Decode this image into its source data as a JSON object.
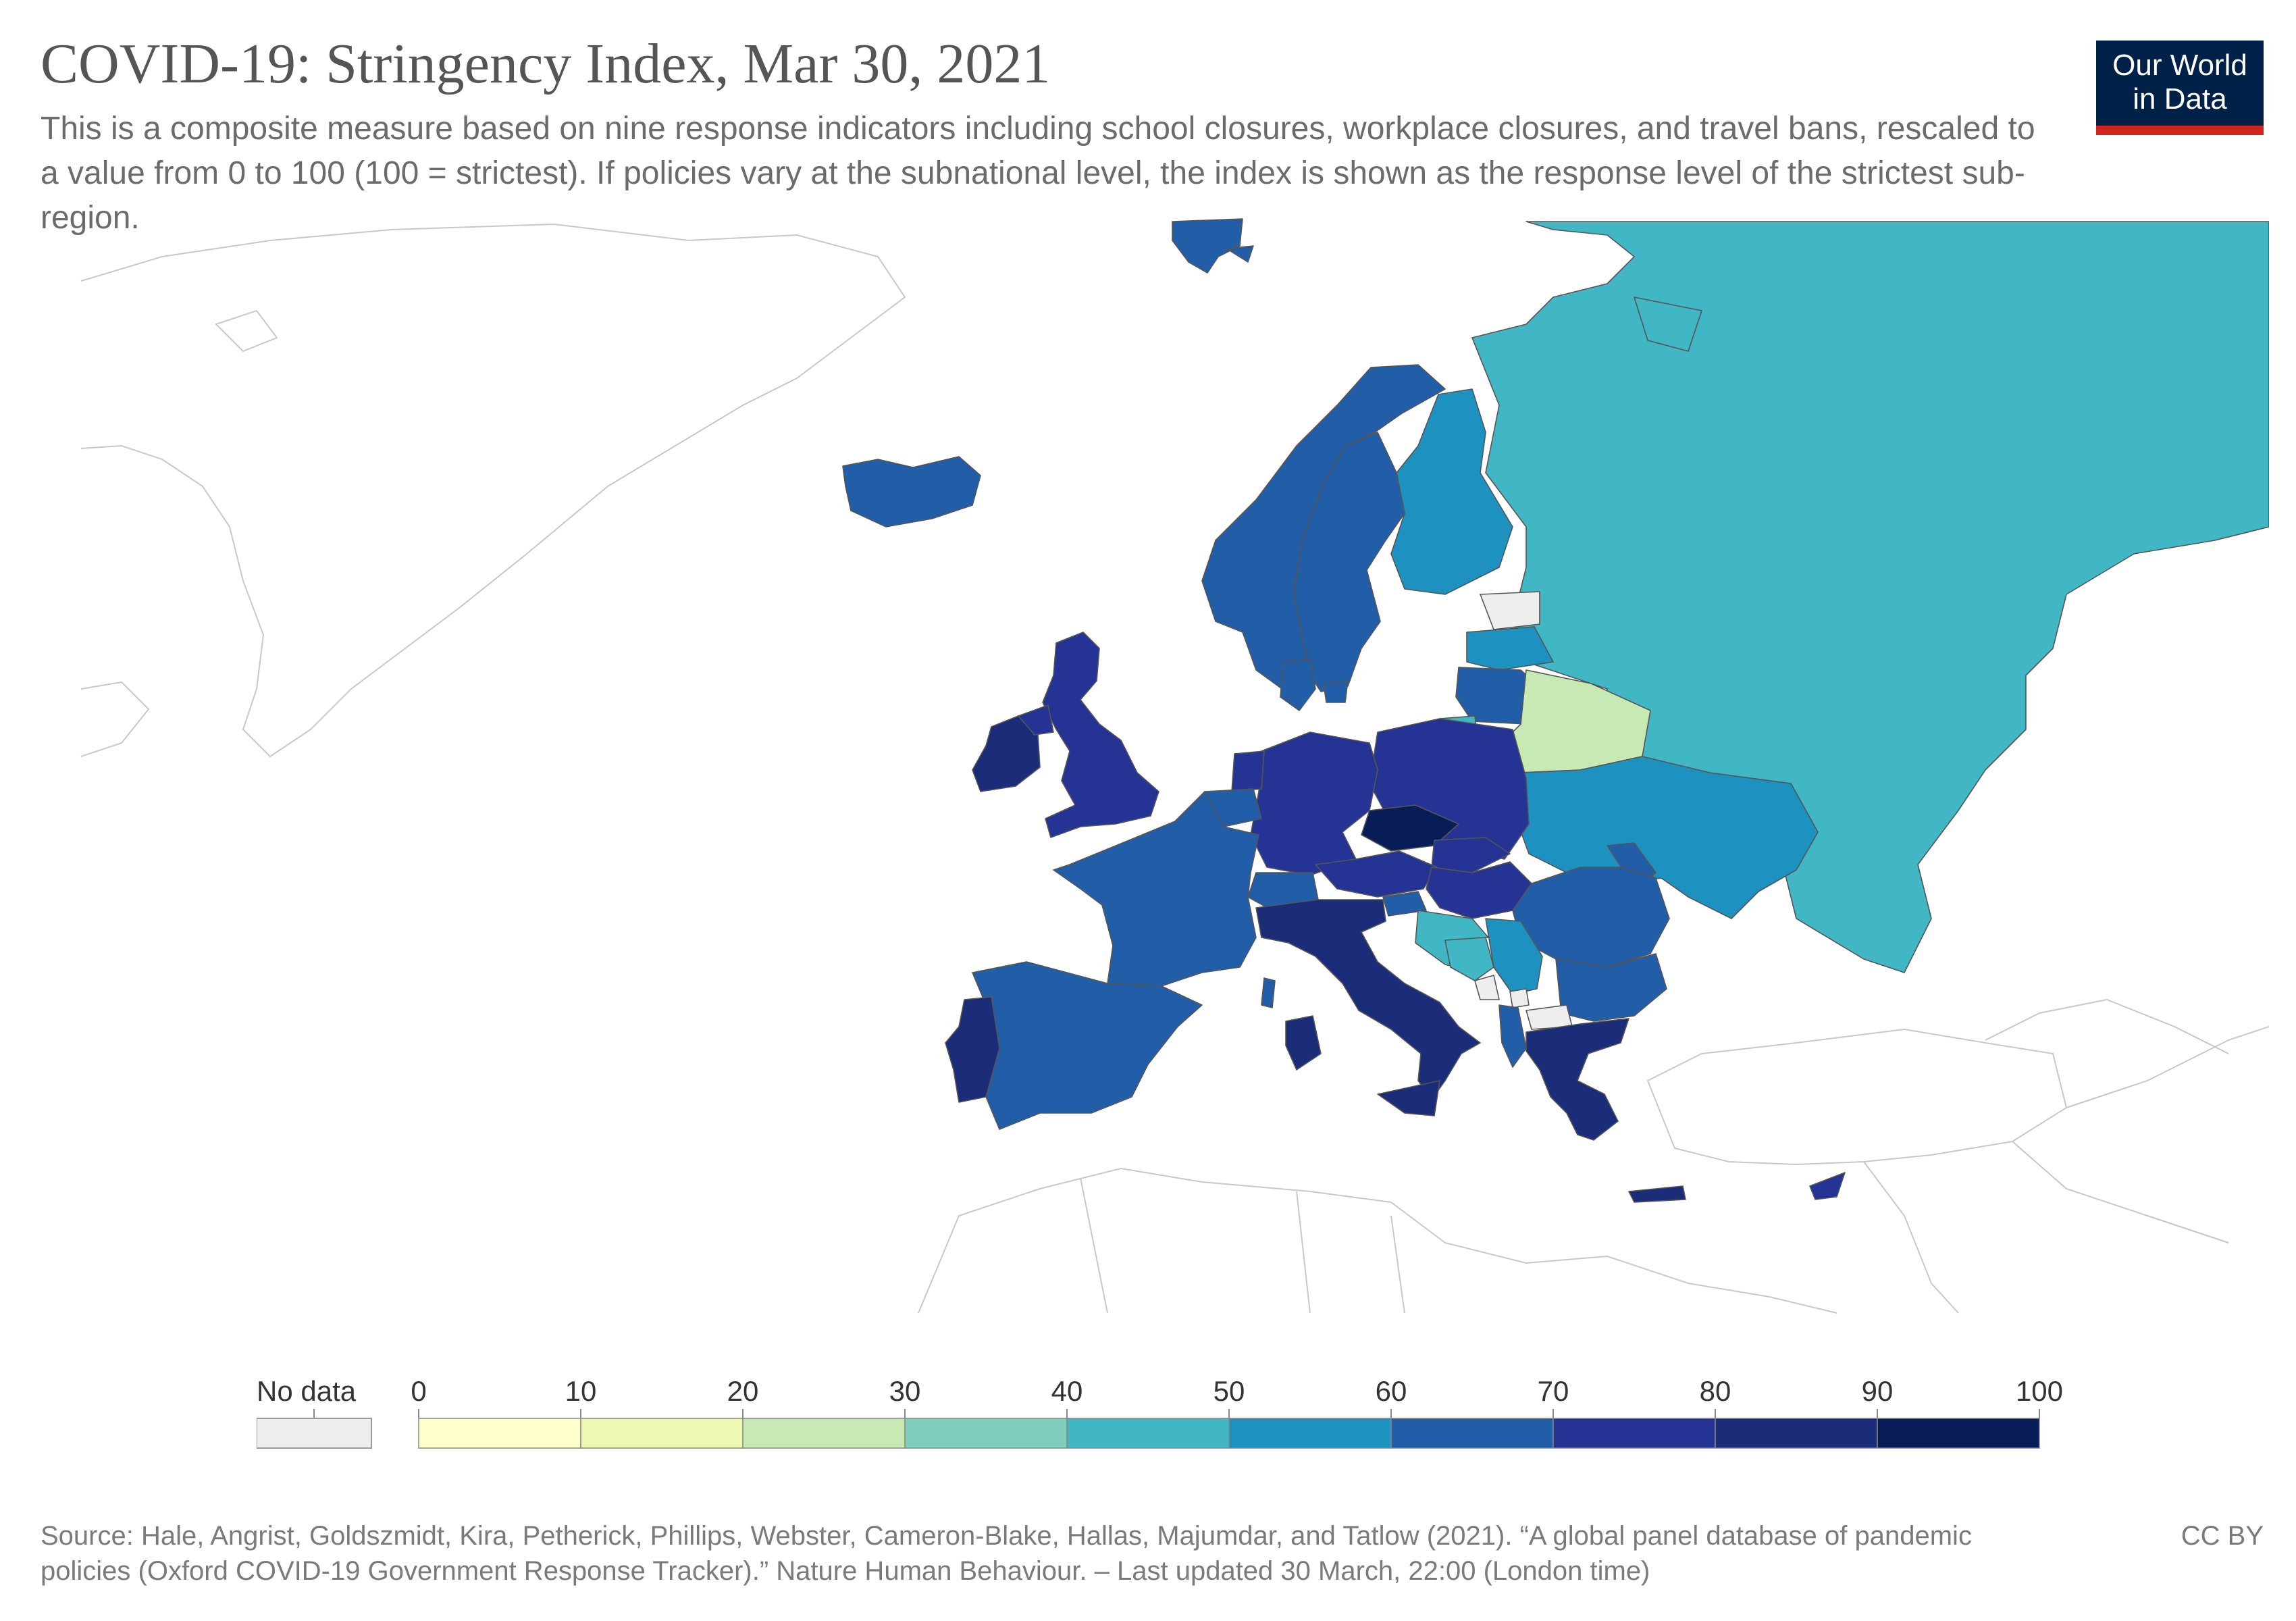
{
  "title": "COVID-19: Stringency Index, Mar 30, 2021",
  "subtitle": "This is a composite measure based on nine response indicators including school closures, workplace closures, and travel bans, rescaled to a value from 0 to 100 (100 = strictest). If policies vary at the subnational level, the index is shown as the response level of the strictest sub-region.",
  "logo": {
    "line1": "Our World",
    "line2": "in Data",
    "bg": "#002147",
    "stripe": "#ce261e"
  },
  "legend": {
    "no_data_label": "No data",
    "no_data_color": "#eeeeee",
    "ticks": [
      "0",
      "10",
      "20",
      "30",
      "40",
      "50",
      "60",
      "70",
      "80",
      "90",
      "100"
    ],
    "bins": [
      {
        "from": 0,
        "to": 10,
        "color": "#ffffcc"
      },
      {
        "from": 10,
        "to": 20,
        "color": "#edf8b1"
      },
      {
        "from": 20,
        "to": 30,
        "color": "#c7e9b4"
      },
      {
        "from": 30,
        "to": 40,
        "color": "#7fcdbb"
      },
      {
        "from": 40,
        "to": 50,
        "color": "#41b6c4"
      },
      {
        "from": 50,
        "to": 60,
        "color": "#1d91c0"
      },
      {
        "from": 60,
        "to": 70,
        "color": "#225ea8"
      },
      {
        "from": 70,
        "to": 80,
        "color": "#253494"
      },
      {
        "from": 80,
        "to": 90,
        "color": "#1b2c79"
      },
      {
        "from": 90,
        "to": 100,
        "color": "#081d58"
      }
    ]
  },
  "footer": {
    "source": "Source: Hale, Angrist, Goldszmidt, Kira, Petherick, Phillips, Webster, Cameron-Blake, Hallas, Majumdar, and Tatlow (2021). “A global panel database of pandemic policies (Oxford COVID-19 Government Response Tracker).” Nature Human Behaviour. – Last updated 30 March, 22:00 (London time)",
    "license": "CC BY"
  },
  "chart_data": {
    "type": "choropleth",
    "scale": {
      "min": 0,
      "max": 100,
      "step": 10
    },
    "regions": [
      {
        "id": "greenland",
        "bin": "nodata"
      },
      {
        "id": "svalbard",
        "bin": "60-70"
      },
      {
        "id": "iceland",
        "bin": "60-70"
      },
      {
        "id": "norway",
        "bin": "60-70"
      },
      {
        "id": "sweden",
        "bin": "60-70"
      },
      {
        "id": "finland",
        "bin": "50-60"
      },
      {
        "id": "russia",
        "bin": "40-50"
      },
      {
        "id": "estonia",
        "bin": "nodata"
      },
      {
        "id": "latvia",
        "bin": "50-60"
      },
      {
        "id": "lithuania",
        "bin": "60-70"
      },
      {
        "id": "kaliningrad",
        "bin": "40-50"
      },
      {
        "id": "belarus",
        "bin": "20-30"
      },
      {
        "id": "ukraine",
        "bin": "50-60"
      },
      {
        "id": "moldova",
        "bin": "60-70"
      },
      {
        "id": "romania",
        "bin": "60-70"
      },
      {
        "id": "bulgaria",
        "bin": "60-70"
      },
      {
        "id": "uk",
        "bin": "70-80"
      },
      {
        "id": "ireland",
        "bin": "80-90"
      },
      {
        "id": "northern-ireland",
        "bin": "70-80"
      },
      {
        "id": "denmark",
        "bin": "60-70"
      },
      {
        "id": "netherlands",
        "bin": "70-80"
      },
      {
        "id": "belgium",
        "bin": "60-70"
      },
      {
        "id": "germany",
        "bin": "70-80"
      },
      {
        "id": "poland",
        "bin": "70-80"
      },
      {
        "id": "czechia",
        "bin": "90-100"
      },
      {
        "id": "slovakia",
        "bin": "70-80"
      },
      {
        "id": "austria",
        "bin": "70-80"
      },
      {
        "id": "hungary",
        "bin": "70-80"
      },
      {
        "id": "switzerland",
        "bin": "60-70"
      },
      {
        "id": "france",
        "bin": "60-70"
      },
      {
        "id": "spain",
        "bin": "60-70"
      },
      {
        "id": "portugal",
        "bin": "80-90"
      },
      {
        "id": "italy",
        "bin": "80-90"
      },
      {
        "id": "sardinia",
        "bin": "80-90"
      },
      {
        "id": "sicily",
        "bin": "80-90"
      },
      {
        "id": "corsica",
        "bin": "60-70"
      },
      {
        "id": "slovenia",
        "bin": "60-70"
      },
      {
        "id": "croatia",
        "bin": "40-50"
      },
      {
        "id": "bosnia",
        "bin": "40-50"
      },
      {
        "id": "serbia",
        "bin": "50-60"
      },
      {
        "id": "montenegro",
        "bin": "nodata"
      },
      {
        "id": "kosovo",
        "bin": "nodata"
      },
      {
        "id": "albania",
        "bin": "60-70"
      },
      {
        "id": "north-macedonia",
        "bin": "nodata"
      },
      {
        "id": "greece",
        "bin": "80-90"
      },
      {
        "id": "crete",
        "bin": "80-90"
      },
      {
        "id": "cyprus",
        "bin": "70-80"
      }
    ]
  }
}
